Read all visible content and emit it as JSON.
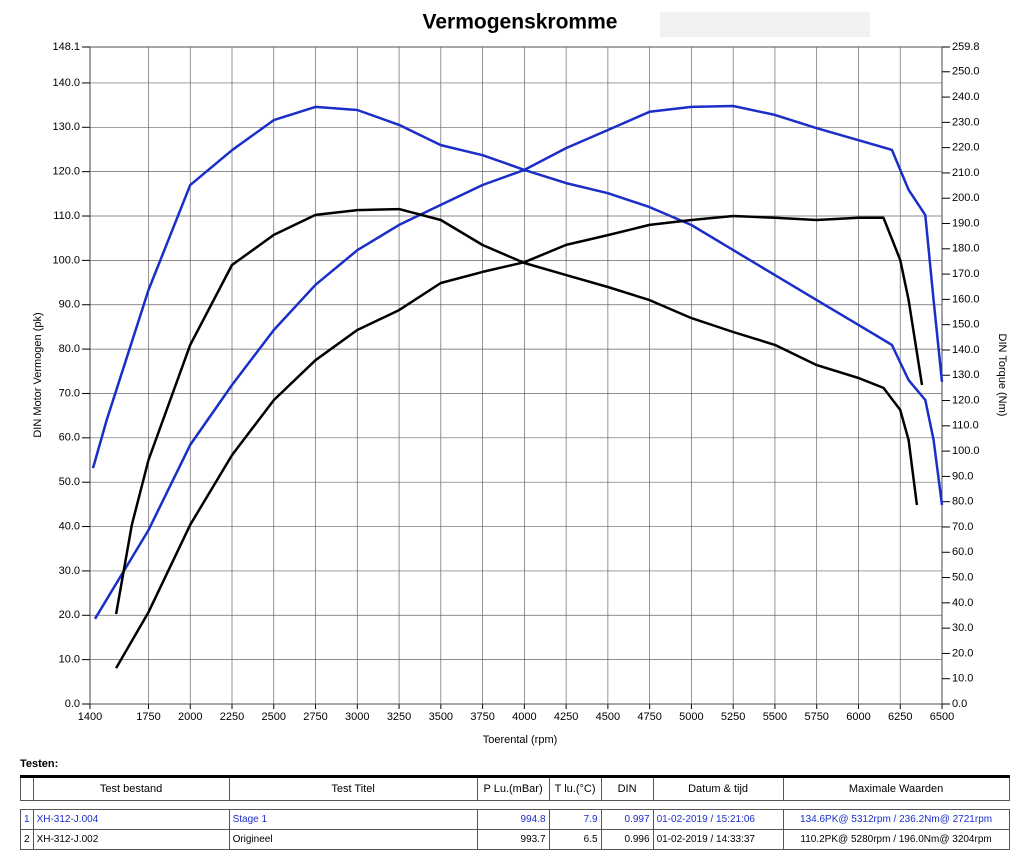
{
  "chart_data": {
    "type": "line",
    "title": "Vermogenskromme",
    "xlabel": "Toerental (rpm)",
    "ylabel": "DIN Motor Vermogen (pk)",
    "y2label": "DIN Torque (Nm)",
    "xlim": [
      1400,
      6500
    ],
    "xticks": [
      1400,
      1750,
      2000,
      2250,
      2500,
      2750,
      3000,
      3250,
      3500,
      3750,
      4000,
      4250,
      4500,
      4750,
      5000,
      5250,
      5500,
      5750,
      6000,
      6250,
      6500
    ],
    "ylim": [
      0,
      148.1
    ],
    "yticks": [
      {
        "value": 0,
        "label": "0.0"
      },
      {
        "value": 10,
        "label": "10.0"
      },
      {
        "value": 20,
        "label": "20.0"
      },
      {
        "value": 30,
        "label": "30.0"
      },
      {
        "value": 40,
        "label": "40.0"
      },
      {
        "value": 50,
        "label": "50.0"
      },
      {
        "value": 60,
        "label": "60.0"
      },
      {
        "value": 70,
        "label": "70.0"
      },
      {
        "value": 80,
        "label": "80.0"
      },
      {
        "value": 90,
        "label": "90.0"
      },
      {
        "value": 100,
        "label": "100.0"
      },
      {
        "value": 110,
        "label": "110.0"
      },
      {
        "value": 120,
        "label": "120.0"
      },
      {
        "value": 130,
        "label": "130.0"
      },
      {
        "value": 140,
        "label": "140.0"
      },
      148.1
    ],
    "y2lim": [
      0,
      259.8
    ],
    "y2ticks": [
      {
        "value": 0,
        "label": "0.0"
      },
      {
        "value": 10,
        "label": "10.0"
      },
      {
        "value": 20,
        "label": "20.0"
      },
      {
        "value": 30,
        "label": "30.0"
      },
      {
        "value": 40,
        "label": "40.0"
      },
      {
        "value": 50,
        "label": "50.0"
      },
      {
        "value": 60,
        "label": "60.0"
      },
      {
        "value": 70,
        "label": "70.0"
      },
      {
        "value": 80,
        "label": "80.0"
      },
      {
        "value": 90,
        "label": "90.0"
      },
      {
        "value": 100,
        "label": "100.0"
      },
      {
        "value": 110,
        "label": "110.0"
      },
      {
        "value": 120,
        "label": "120.0"
      },
      {
        "value": 130,
        "label": "130.0"
      },
      {
        "value": 140,
        "label": "140.0"
      },
      {
        "value": 150,
        "label": "150.0"
      },
      {
        "value": 160,
        "label": "160.0"
      },
      {
        "value": 170,
        "label": "170.0"
      },
      {
        "value": 180,
        "label": "180.0"
      },
      {
        "value": 190,
        "label": "190.0"
      },
      {
        "value": 200,
        "label": "200.0"
      },
      {
        "value": 210,
        "label": "210.0"
      },
      {
        "value": 220,
        "label": "220.0"
      },
      {
        "value": 230,
        "label": "230.0"
      },
      {
        "value": 240,
        "label": "240.0"
      },
      {
        "value": 250,
        "label": "250.0"
      },
      259.8
    ],
    "grid": true,
    "series": [
      {
        "color": "#1a2ec8",
        "axis": "y",
        "x": [
          1430,
          1750,
          2000,
          2250,
          2500,
          2750,
          3000,
          3250,
          3500,
          3750,
          4000,
          4250,
          4500,
          4750,
          5000,
          5250,
          5500,
          5750,
          6000,
          6200,
          6300,
          6400,
          6450,
          6500
        ],
        "values": [
          19.2,
          39.2,
          58.4,
          71.9,
          84.3,
          94.5,
          102.3,
          108.0,
          112.5,
          117.0,
          120.4,
          125.3,
          129.4,
          133.5,
          134.6,
          134.8,
          132.8,
          129.8,
          127.1,
          124.9,
          115.9,
          110.2,
          91.0,
          72.6
        ]
      },
      {
        "color": "#1a2ec8",
        "axis": "y2",
        "x": [
          1418,
          1500,
          1750,
          2000,
          2250,
          2500,
          2750,
          3000,
          3250,
          3500,
          3750,
          4000,
          4250,
          4500,
          4750,
          5000,
          5250,
          5500,
          5750,
          6000,
          6200,
          6300,
          6400,
          6450,
          6500
        ],
        "values": [
          93.3,
          112.3,
          163.7,
          205.2,
          219.0,
          230.9,
          236.1,
          234.9,
          229.0,
          221.0,
          217.0,
          211.2,
          206.0,
          202.0,
          196.5,
          189.4,
          179.5,
          169.6,
          159.7,
          149.9,
          142.0,
          128.1,
          120.2,
          104.4,
          78.7
        ]
      },
      {
        "color": "#000000",
        "axis": "y",
        "x": [
          1556,
          1750,
          2000,
          2250,
          2500,
          2750,
          3000,
          3250,
          3500,
          3750,
          4000,
          4250,
          4500,
          4750,
          5000,
          5250,
          5500,
          5750,
          6000,
          6150,
          6250,
          6300,
          6380
        ],
        "values": [
          8.1,
          20.7,
          40.4,
          56.1,
          68.5,
          77.5,
          84.3,
          88.8,
          94.9,
          97.4,
          99.6,
          103.5,
          105.7,
          108.0,
          109.1,
          110.0,
          109.6,
          109.1,
          109.6,
          109.6,
          100.1,
          91.1,
          71.9
        ]
      },
      {
        "color": "#000000",
        "axis": "y2",
        "x": [
          1556,
          1650,
          1750,
          2000,
          2250,
          2500,
          2750,
          3000,
          3250,
          3500,
          3750,
          4000,
          4250,
          4500,
          4750,
          5000,
          5250,
          5500,
          5750,
          6000,
          6150,
          6250,
          6300,
          6350
        ],
        "values": [
          35.6,
          70.8,
          96.5,
          142.0,
          173.6,
          185.5,
          193.4,
          195.3,
          195.7,
          191.4,
          181.5,
          174.4,
          169.6,
          164.9,
          159.7,
          152.6,
          147.1,
          142.0,
          134.0,
          128.9,
          125.0,
          116.3,
          104.4,
          78.7
        ]
      }
    ]
  },
  "table": {
    "caption": "Testen:",
    "header": [
      "Test bestand",
      "Test Titel",
      "P Lu.(mBar)",
      "T lu.(°C)",
      "DIN",
      "Datum & tijd",
      "Maximale Waarden"
    ],
    "rows": [
      [
        1,
        "XH-312-J.004",
        "Stage 1",
        994.8,
        7.9,
        0.997,
        "01-02-2019 / 15:21:06",
        "134.6PK@ 5312rpm / 236.2Nm@ 2721rpm"
      ],
      [
        2,
        "XH-312-J.002",
        "Origineel",
        993.7,
        6.5,
        0.996,
        "01-02-2019 / 14:33:37",
        "110.2PK@ 5280rpm / 196.0Nm@ 3204rpm"
      ]
    ]
  }
}
